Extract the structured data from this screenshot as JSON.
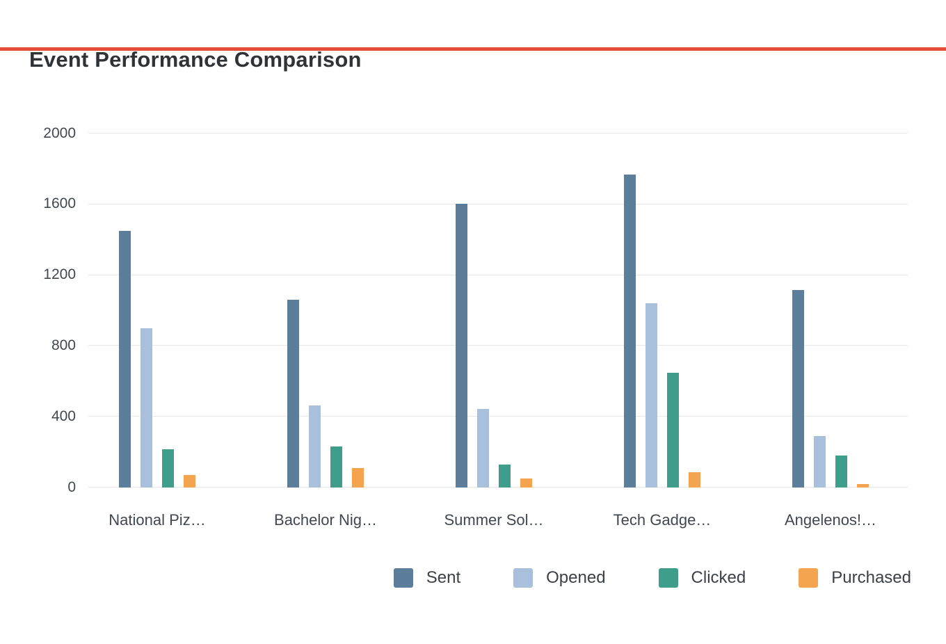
{
  "decor": {
    "top_accent_color": "#e64c3c",
    "bottom_accent_color": "#4472d4"
  },
  "chart_data": {
    "type": "bar",
    "title": "Event Performance Comparison",
    "xlabel": "",
    "ylabel": "",
    "categories": [
      "National Piz…",
      "Bachelor Nig…",
      "Summer Sol…",
      "Tech Gadge…",
      "Angelenos!…"
    ],
    "series": [
      {
        "name": "Sent",
        "color": "#5c7e9a",
        "values": [
          1450,
          1060,
          1605,
          1770,
          1115
        ]
      },
      {
        "name": "Opened",
        "color": "#a8c0dc",
        "values": [
          900,
          465,
          445,
          1040,
          290
        ]
      },
      {
        "name": "Clicked",
        "color": "#3e9d8b",
        "values": [
          215,
          230,
          130,
          650,
          180
        ]
      },
      {
        "name": "Purchased",
        "color": "#f4a44f",
        "values": [
          70,
          110,
          50,
          85,
          20
        ]
      }
    ],
    "ylim": [
      0,
      2000
    ],
    "yticks": [
      0,
      400,
      800,
      1200,
      1600,
      2000
    ],
    "grid": true,
    "legend_position": "bottom"
  }
}
